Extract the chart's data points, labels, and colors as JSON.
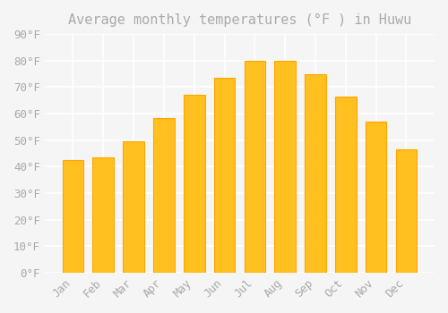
{
  "title": "Average monthly temperatures (°F ) in Huwu",
  "months": [
    "Jan",
    "Feb",
    "Mar",
    "Apr",
    "May",
    "Jun",
    "Jul",
    "Aug",
    "Sep",
    "Oct",
    "Nov",
    "Dec"
  ],
  "values": [
    42.5,
    43.5,
    49.5,
    58.5,
    67.0,
    73.5,
    80.0,
    80.0,
    75.0,
    66.5,
    57.0,
    46.5
  ],
  "bar_color": "#FFC020",
  "bar_edge_color": "#FFA500",
  "background_color": "#F5F5F5",
  "grid_color": "#FFFFFF",
  "text_color": "#AAAAAA",
  "ylim": [
    0,
    90
  ],
  "yticks": [
    0,
    10,
    20,
    30,
    40,
    50,
    60,
    70,
    80,
    90
  ],
  "title_fontsize": 11,
  "tick_fontsize": 9
}
